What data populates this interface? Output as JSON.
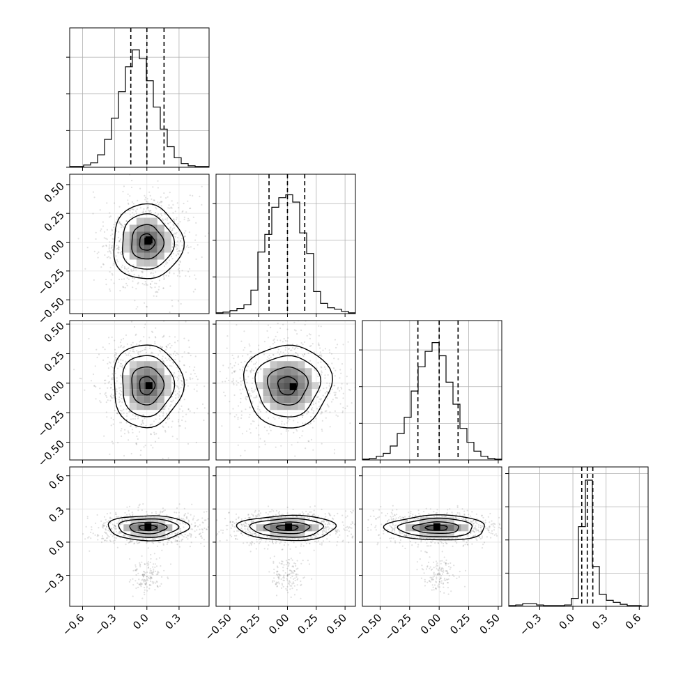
{
  "chart_data": {
    "type": "corner",
    "dimensions": 4,
    "grid": true,
    "axes": [
      {
        "range": [
          -0.72,
          0.58
        ],
        "ticks": [
          -0.6,
          -0.3,
          0.0,
          0.3
        ],
        "tick_labels": [
          "−0.6",
          "−0.3",
          "0.0",
          "0.3"
        ]
      },
      {
        "range": [
          -0.62,
          0.59
        ],
        "ticks": [
          -0.5,
          -0.25,
          0.0,
          0.25,
          0.5
        ],
        "tick_labels": [
          "−0.50",
          "−0.25",
          "0.00",
          "0.25",
          "0.50"
        ]
      },
      {
        "range": [
          -0.65,
          0.53
        ],
        "ticks": [
          -0.5,
          -0.25,
          0.0,
          0.25,
          0.5
        ],
        "tick_labels": [
          "−0.50",
          "−0.25",
          "0.00",
          "0.25",
          "0.50"
        ]
      },
      {
        "range": [
          -0.58,
          0.68
        ],
        "ticks": [
          -0.3,
          0.0,
          0.3,
          0.6
        ],
        "tick_labels": [
          "−0.3",
          "0.0",
          "0.3",
          "0.6"
        ]
      }
    ],
    "histograms": [
      {
        "bin_edges": [
          -0.72,
          -0.655,
          -0.59,
          -0.525,
          -0.46,
          -0.395,
          -0.33,
          -0.265,
          -0.2,
          -0.135,
          -0.07,
          -0.005,
          0.06,
          0.125,
          0.19,
          0.255,
          0.32,
          0.385,
          0.45,
          0.515,
          0.58
        ],
        "counts": [
          1,
          1,
          3,
          6,
          17,
          38,
          67,
          103,
          137,
          160,
          148,
          118,
          82,
          52,
          28,
          13,
          5,
          2,
          1,
          1
        ],
        "quantiles": [
          -0.15,
          0.0,
          0.16
        ],
        "ymax": 190,
        "yticks": [
          0,
          50,
          100,
          150
        ]
      },
      {
        "bin_edges": [
          -0.62,
          -0.5595,
          -0.499,
          -0.4385,
          -0.378,
          -0.3175,
          -0.257,
          -0.1965,
          -0.136,
          -0.0755,
          -0.015,
          0.0455,
          0.106,
          0.1665,
          0.227,
          0.2875,
          0.348,
          0.4085,
          0.469,
          0.5295,
          0.59
        ],
        "counts": [
          1,
          2,
          4,
          7,
          12,
          32,
          84,
          108,
          145,
          158,
          162,
          152,
          110,
          82,
          30,
          14,
          8,
          6,
          3,
          1
        ],
        "quantiles": [
          -0.16,
          0.0,
          0.15
        ],
        "ymax": 190,
        "yticks": [
          50,
          100,
          150
        ]
      },
      {
        "bin_edges": [
          -0.65,
          -0.591,
          -0.532,
          -0.473,
          -0.414,
          -0.355,
          -0.296,
          -0.237,
          -0.178,
          -0.119,
          -0.06,
          -0.001,
          0.058,
          0.117,
          0.176,
          0.235,
          0.294,
          0.353,
          0.412,
          0.471,
          0.53
        ],
        "counts": [
          1,
          2,
          5,
          9,
          19,
          36,
          58,
          94,
          127,
          148,
          160,
          142,
          106,
          76,
          43,
          24,
          12,
          5,
          2,
          1
        ],
        "quantiles": [
          -0.18,
          0.0,
          0.16
        ],
        "ymax": 190,
        "yticks": [
          50,
          100,
          150
        ]
      },
      {
        "bin_edges": [
          -0.58,
          -0.517,
          -0.454,
          -0.391,
          -0.328,
          -0.265,
          -0.202,
          -0.139,
          -0.076,
          -0.013,
          0.05,
          0.113,
          0.176,
          0.239,
          0.302,
          0.365,
          0.428,
          0.491,
          0.554,
          0.617,
          0.68
        ],
        "counts": [
          1,
          2,
          4,
          4,
          2,
          1,
          1,
          1,
          2,
          12,
          120,
          190,
          60,
          18,
          9,
          6,
          3,
          1,
          1,
          0
        ],
        "quantiles": [
          0.08,
          0.13,
          0.18
        ],
        "ymax": 210,
        "yticks": [
          50,
          100,
          150,
          200
        ]
      }
    ],
    "contour_levels": [
      0.39,
      0.86,
      0.99
    ],
    "pairs": [
      {
        "row": 1,
        "col": 0,
        "mean": [
          0.0,
          0.0
        ],
        "sd": [
          0.13,
          0.13
        ],
        "clump": [
          0.0,
          0.0,
          0.2,
          0.2
        ],
        "darkest": [
          [
            0.01,
            0.01
          ],
          [
            0.02,
            0.02
          ]
        ]
      },
      {
        "row": 2,
        "col": 0,
        "mean": [
          0.0,
          -0.02
        ],
        "sd": [
          0.13,
          0.14
        ],
        "clump": [
          0.0,
          0.0,
          0.2,
          0.2
        ],
        "darkest": [
          [
            0.02,
            -0.02
          ]
        ]
      },
      {
        "row": 2,
        "col": 1,
        "mean": [
          0.0,
          -0.02
        ],
        "sd": [
          0.15,
          0.14
        ],
        "clump": [
          0.0,
          0.0,
          0.2,
          0.2
        ],
        "darkest": [
          [
            0.05,
            -0.03
          ]
        ]
      },
      {
        "row": 3,
        "col": 0,
        "mean": [
          0.01,
          0.13
        ],
        "sd": [
          0.15,
          0.045
        ],
        "clump": [
          0.0,
          -0.3,
          0.1,
          0.1
        ],
        "darkest": [
          [
            0.01,
            0.14
          ]
        ]
      },
      {
        "row": 3,
        "col": 1,
        "mean": [
          0.0,
          0.13
        ],
        "sd": [
          0.17,
          0.045
        ],
        "clump": [
          0.0,
          -0.3,
          0.1,
          0.1
        ],
        "darkest": [
          [
            0.01,
            0.14
          ]
        ]
      },
      {
        "row": 3,
        "col": 2,
        "mean": [
          -0.02,
          0.13
        ],
        "sd": [
          0.17,
          0.045
        ],
        "clump": [
          0.0,
          -0.3,
          0.1,
          0.1
        ],
        "darkest": [
          [
            -0.02,
            0.14
          ]
        ]
      }
    ]
  }
}
